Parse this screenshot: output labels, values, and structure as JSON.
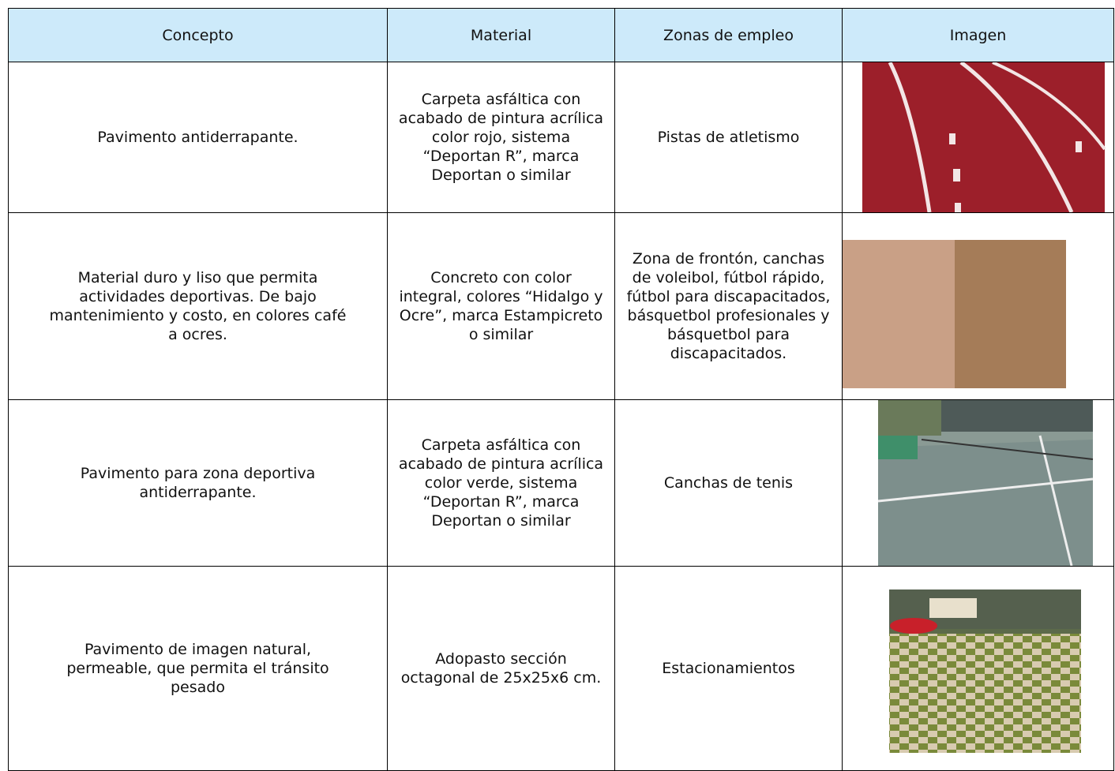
{
  "table": {
    "header": [
      "Concepto",
      "Material",
      "Zonas de empleo",
      "Imagen"
    ],
    "rows": [
      [
        "Pavimento antiderrapante.",
        "Carpeta asfáltica con acabado de pintura acrílica color rojo, sistema  “Deportan R”, marca Deportan o similar",
        "Pistas de atletismo"
      ],
      [
        "Material duro y liso que permita actividades deportivas. De bajo mantenimiento y costo, en colores café a ocres.",
        "Concreto con color integral, colores “Hidalgo y Ocre”, marca Estampicreto o similar",
        "Zona de frontón, canchas de voleibol, fútbol rápido, fútbol para discapacitados, básquetbol profesionales y básquetbol para discapacitados."
      ],
      [
        "Pavimento para zona deportiva antiderrapante.",
        "Carpeta asfáltica con acabado de pintura acrílica color verde, sistema  “Deportan R”, marca Deportan o similar",
        "Canchas de tenis"
      ],
      [
        "Pavimento de imagen natural, permeable, que permita el tránsito pesado",
        "Adopasto sección octagonal de 25x25x6 cm.",
        "Estacionamientos"
      ]
    ]
  }
}
